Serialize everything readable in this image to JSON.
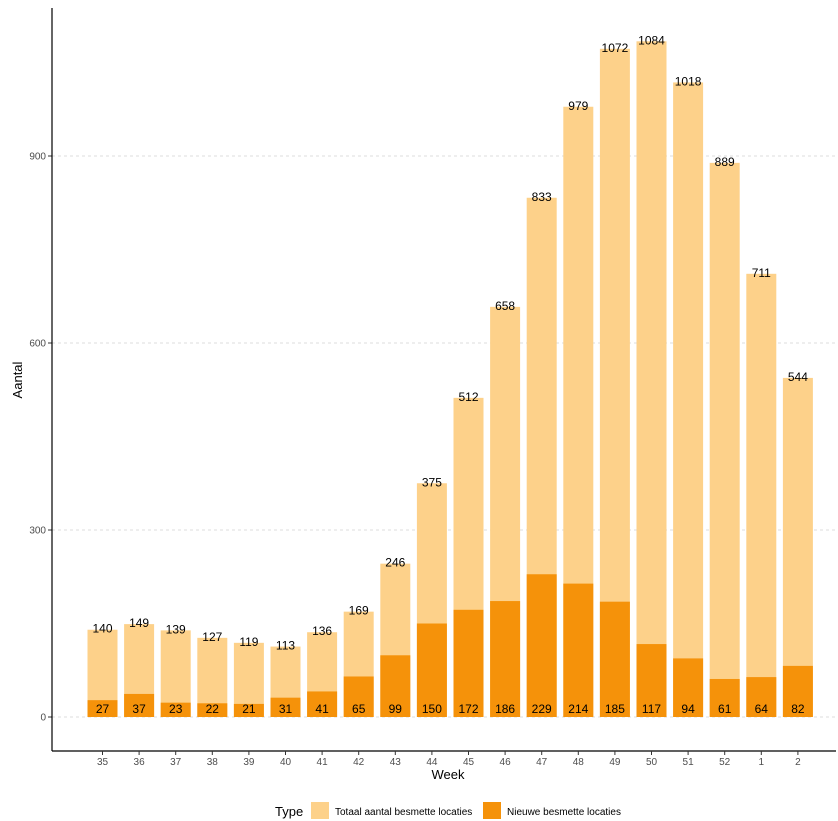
{
  "chart_data": {
    "type": "bar",
    "categories": [
      "35",
      "36",
      "37",
      "38",
      "39",
      "40",
      "41",
      "42",
      "43",
      "44",
      "45",
      "46",
      "47",
      "48",
      "49",
      "50",
      "51",
      "52",
      "1",
      "2"
    ],
    "series": [
      {
        "name": "Totaal aantal besmette locaties",
        "color": "#FDD18A",
        "values": [
          140,
          149,
          139,
          127,
          119,
          113,
          136,
          169,
          246,
          375,
          512,
          658,
          833,
          979,
          1072,
          1084,
          1018,
          889,
          711,
          544
        ]
      },
      {
        "name": "Nieuwe besmette locaties",
        "color": "#F5920A",
        "values": [
          27,
          37,
          23,
          22,
          21,
          31,
          41,
          65,
          99,
          150,
          172,
          186,
          229,
          214,
          185,
          117,
          94,
          61,
          64,
          82
        ]
      }
    ],
    "xlabel": "Week",
    "ylabel": "Aantal",
    "ylim": [
      0,
      1100
    ],
    "yticks": [
      0,
      300,
      600,
      900
    ],
    "ytick_labels": [
      "0",
      "300",
      "600",
      "900"
    ],
    "grid": "horizontal dashed",
    "legend": {
      "title": "Type",
      "position": "bottom"
    }
  }
}
